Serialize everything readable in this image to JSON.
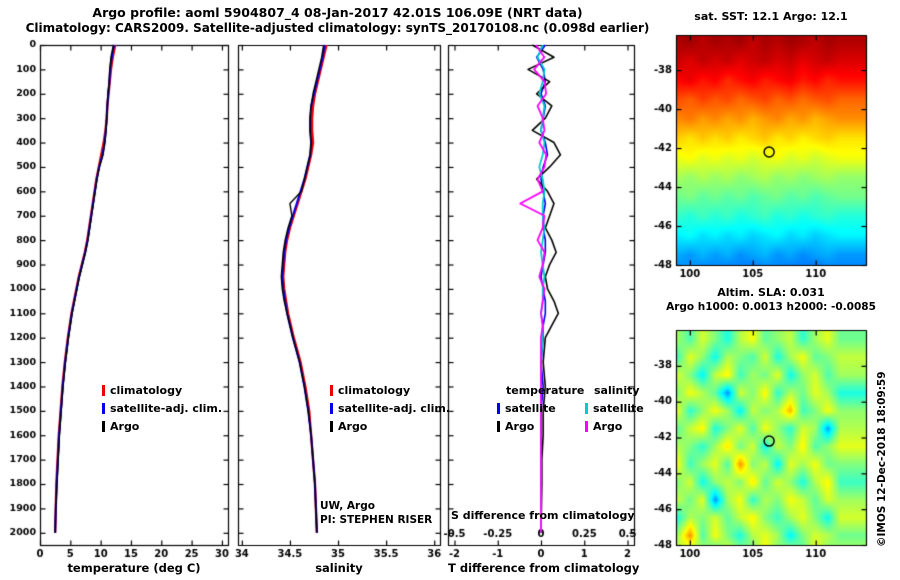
{
  "header": {
    "title_line1": "Argo profile: aoml 5904807_4 08-Jan-2017 42.01S 106.09E (NRT data)",
    "title_line2": "Climatology: CARS2009. Satellite-adjusted climatology: synTS_20170108.nc (0.098d earlier)"
  },
  "watermark": "©IMOS 12-Dec-2018 18:09:59",
  "chart_data": [
    {
      "id": "temperature_profile",
      "type": "line",
      "xlabel": "temperature (deg C)",
      "xlim": [
        0,
        31
      ],
      "xticks": [
        0,
        5,
        10,
        15,
        20,
        25,
        30
      ],
      "ylim": [
        0,
        2050
      ],
      "yticks": [
        0,
        100,
        200,
        300,
        400,
        500,
        600,
        700,
        800,
        900,
        1000,
        1100,
        1200,
        1300,
        1400,
        1500,
        1600,
        1700,
        1800,
        1900,
        2000
      ],
      "depths": [
        0,
        50,
        100,
        150,
        200,
        250,
        300,
        350,
        400,
        450,
        500,
        550,
        600,
        650,
        700,
        750,
        800,
        850,
        900,
        950,
        1000,
        1050,
        1100,
        1150,
        1200,
        1300,
        1400,
        1500,
        1600,
        1700,
        1800,
        1900,
        2000
      ],
      "series": [
        {
          "name": "climatology",
          "color": "#ee0000",
          "values": [
            12.4,
            12.0,
            11.7,
            11.5,
            11.3,
            11.1,
            11.0,
            10.8,
            10.5,
            10.1,
            9.7,
            9.3,
            9.0,
            8.7,
            8.4,
            8.1,
            7.8,
            7.4,
            6.9,
            6.4,
            6.0,
            5.6,
            5.2,
            4.9,
            4.6,
            4.1,
            3.7,
            3.4,
            3.1,
            2.9,
            2.7,
            2.6,
            2.5
          ]
        },
        {
          "name": "satellite-adj. clim.",
          "color": "#0000ee",
          "values": [
            12.2,
            11.85,
            11.55,
            11.45,
            11.25,
            11.1,
            11.0,
            10.85,
            10.65,
            10.3,
            9.75,
            9.35,
            9.05,
            8.75,
            8.45,
            8.15,
            7.85,
            7.45,
            6.95,
            6.45,
            6.05,
            5.65,
            5.25,
            4.95,
            4.65,
            4.15,
            3.75,
            3.45,
            3.15,
            2.95,
            2.75,
            2.6,
            2.5
          ]
        },
        {
          "name": "Argo",
          "color": "#000000",
          "values": [
            12.1,
            11.7,
            11.5,
            11.4,
            11.2,
            11.1,
            11.0,
            10.9,
            10.7,
            10.4,
            9.8,
            9.4,
            9.1,
            8.8,
            8.5,
            8.2,
            7.9,
            7.5,
            7.0,
            6.5,
            6.1,
            5.7,
            5.3,
            5.0,
            4.7,
            4.2,
            3.8,
            3.5,
            3.2,
            3.0,
            2.8,
            2.6,
            2.5
          ]
        }
      ]
    },
    {
      "id": "salinity_profile",
      "type": "line",
      "xlabel": "salinity",
      "xlim": [
        33.96,
        36.06
      ],
      "xticks": [
        34,
        34.5,
        35,
        35.5,
        36
      ],
      "ylim": [
        0,
        2050
      ],
      "yticks": [
        0,
        100,
        200,
        300,
        400,
        500,
        600,
        700,
        800,
        900,
        1000,
        1100,
        1200,
        1300,
        1400,
        1500,
        1600,
        1700,
        1800,
        1900,
        2000
      ],
      "depths": [
        0,
        50,
        100,
        150,
        200,
        250,
        300,
        350,
        400,
        450,
        500,
        550,
        600,
        650,
        700,
        750,
        800,
        850,
        900,
        950,
        1000,
        1050,
        1100,
        1150,
        1200,
        1300,
        1400,
        1500,
        1600,
        1700,
        1800,
        1900,
        2000
      ],
      "annotations": [
        "UW, Argo",
        "PI: STEPHEN RISER"
      ],
      "series": [
        {
          "name": "climatology",
          "color": "#ee0000",
          "values": [
            34.88,
            34.85,
            34.82,
            34.79,
            34.76,
            34.74,
            34.73,
            34.73,
            34.74,
            34.72,
            34.69,
            34.66,
            34.62,
            34.58,
            34.54,
            34.5,
            34.47,
            34.45,
            34.44,
            34.43,
            34.44,
            34.46,
            34.48,
            34.51,
            34.54,
            34.61,
            34.66,
            34.7,
            34.72,
            34.74,
            34.76,
            34.77,
            34.78
          ]
        },
        {
          "name": "satellite-adj. clim.",
          "color": "#0000ee",
          "values": [
            34.86,
            34.84,
            34.81,
            34.78,
            34.75,
            34.72,
            34.71,
            34.71,
            34.72,
            34.71,
            34.68,
            34.65,
            34.61,
            34.57,
            34.53,
            34.49,
            34.46,
            34.44,
            34.43,
            34.42,
            34.43,
            34.45,
            34.47,
            34.5,
            34.53,
            34.6,
            34.65,
            34.69,
            34.72,
            34.74,
            34.76,
            34.77,
            34.78
          ]
        },
        {
          "name": "Argo",
          "color": "#000000",
          "values": [
            34.85,
            34.83,
            34.8,
            34.77,
            34.74,
            34.72,
            34.71,
            34.71,
            34.72,
            34.71,
            34.68,
            34.65,
            34.62,
            34.5,
            34.52,
            34.48,
            34.45,
            34.43,
            34.42,
            34.41,
            34.42,
            34.44,
            34.47,
            34.5,
            34.53,
            34.6,
            34.65,
            34.69,
            34.72,
            34.74,
            34.76,
            34.77,
            34.78
          ]
        }
      ]
    },
    {
      "id": "difference_profile",
      "type": "line",
      "xlabel": "T difference from climatology",
      "slabel": "S difference from climatology",
      "xlim": [
        -2.15,
        2.15
      ],
      "xticks": [
        -2,
        -1,
        0,
        1,
        2
      ],
      "slim": [
        -0.5375,
        0.5375
      ],
      "sticks": [
        -0.5,
        -0.25,
        0,
        0.25,
        0.5
      ],
      "ylim": [
        0,
        2050
      ],
      "yticks": [
        0,
        100,
        200,
        300,
        400,
        500,
        600,
        700,
        800,
        900,
        1000,
        1100,
        1200,
        1300,
        1400,
        1500,
        1600,
        1700,
        1800,
        1900,
        2000
      ],
      "depths": [
        0,
        50,
        100,
        150,
        200,
        250,
        300,
        350,
        400,
        450,
        500,
        550,
        600,
        650,
        700,
        750,
        800,
        850,
        900,
        950,
        1000,
        1050,
        1100,
        1150,
        1200,
        1300,
        1400,
        1500,
        1600,
        1700,
        1800,
        1900,
        2000
      ],
      "series": [
        {
          "name": "satellite",
          "group": "temperature",
          "axis": "T",
          "color": "#0000ee",
          "values": [
            0.1,
            -0.1,
            0.05,
            0.1,
            0,
            0.1,
            0.05,
            0,
            0.1,
            0.15,
            0.05,
            0,
            0.05,
            0.1,
            0.05,
            0.05,
            0.1,
            0.1,
            0.05,
            0,
            0.05,
            0.1,
            0.1,
            0.05,
            0.05,
            0,
            0.05,
            0,
            0,
            0,
            0,
            0,
            0
          ]
        },
        {
          "name": "Argo",
          "group": "temperature",
          "axis": "T",
          "color": "#000000",
          "values": [
            -0.2,
            0.3,
            -0.3,
            0.2,
            -0.1,
            0.25,
            0.1,
            -0.2,
            0.3,
            0.45,
            0.2,
            -0.1,
            0.15,
            0.3,
            0.2,
            0.1,
            0.25,
            0.35,
            0.2,
            0.1,
            0.15,
            0.3,
            0.4,
            0.25,
            0.1,
            0.05,
            0.1,
            0.05,
            0.05,
            0.02,
            0.02,
            0.01,
            0
          ]
        },
        {
          "name": "satellite",
          "group": "salinity",
          "axis": "S",
          "color": "#00cccc",
          "values": [
            0.01,
            -0.02,
            0.02,
            0.01,
            -0.01,
            0.02,
            0.01,
            0,
            0.02,
            0.01,
            -0.01,
            0.01,
            0.02,
            0.01,
            0.01,
            0.02,
            0.01,
            0,
            0.01,
            0.02,
            0.01,
            0.01,
            0,
            0.01,
            0.01,
            0,
            0,
            0,
            0,
            0,
            0,
            0,
            0
          ]
        },
        {
          "name": "Argo",
          "group": "salinity",
          "axis": "S",
          "color": "#ff00ff",
          "values": [
            -0.03,
            0.02,
            -0.04,
            0.02,
            0.03,
            -0.02,
            0.01,
            0.02,
            -0.01,
            0.03,
            0.02,
            -0.02,
            0.01,
            -0.12,
            0.02,
            0.01,
            -0.02,
            0.02,
            0.01,
            -0.01,
            0.02,
            0.01,
            0,
            0.01,
            0,
            0,
            0,
            0,
            0,
            0,
            0,
            0,
            0
          ]
        }
      ],
      "legend_groups": [
        {
          "title": "temperature",
          "entries": [
            {
              "label": "satellite",
              "color": "#0000ee"
            },
            {
              "label": "Argo",
              "color": "#000000"
            }
          ]
        },
        {
          "title": "salinity",
          "entries": [
            {
              "label": "satellite",
              "color": "#00cccc"
            },
            {
              "label": "Argo",
              "color": "#ff00ff"
            }
          ]
        }
      ]
    },
    {
      "id": "sst_map",
      "type": "heatmap",
      "title": "sat. SST: 12.1  Argo: 12.1",
      "xticks": [
        100,
        105,
        110
      ],
      "yticks": [
        -38,
        -40,
        -42,
        -44,
        -46,
        -48
      ],
      "lon_range": [
        98.9,
        114.0
      ],
      "lat_range": [
        -36.2,
        -48.0
      ],
      "vmin": -1.7,
      "vmax": 20.6,
      "marker": {
        "lon": 106.3,
        "lat": -42.2
      },
      "lons": [
        99,
        100,
        101,
        102,
        103,
        104,
        105,
        106,
        107,
        108,
        109,
        110,
        111,
        112
      ],
      "lats": [
        -36.5,
        -37.5,
        -38.5,
        -39.5,
        -40.5,
        -41.5,
        -42.5,
        -43.5,
        -44.5,
        -45.5,
        -46.5,
        -47.5,
        -48.5
      ],
      "values": [
        [
          19.6,
          19.9,
          19.3,
          19.8,
          19.5,
          19.9,
          19.1,
          19.7,
          19.4,
          19.9,
          19.6,
          19.2,
          19.8,
          19.5
        ],
        [
          19.0,
          18.5,
          19.2,
          18.7,
          19.1,
          18.4,
          18.9,
          19.2,
          18.6,
          19.0,
          18.3,
          18.8,
          19.1,
          18.6
        ],
        [
          17.8,
          18.2,
          17.4,
          17.9,
          16.9,
          17.6,
          18.0,
          17.2,
          17.7,
          18.1,
          17.3,
          17.8,
          17.0,
          17.5
        ],
        [
          16.2,
          15.7,
          16.5,
          15.9,
          16.3,
          15.5,
          16.0,
          16.4,
          15.6,
          16.1,
          15.4,
          15.9,
          16.2,
          15.6
        ],
        [
          14.8,
          15.2,
          14.4,
          14.9,
          14.2,
          14.7,
          13.9,
          14.5,
          14.9,
          14.1,
          14.6,
          13.8,
          14.3,
          14.7
        ],
        [
          13.3,
          12.8,
          13.5,
          12.9,
          13.4,
          12.6,
          13.1,
          13.5,
          12.7,
          13.2,
          12.5,
          13.0,
          13.3,
          12.8
        ],
        [
          11.9,
          12.3,
          11.5,
          12.0,
          11.4,
          11.9,
          11.2,
          11.7,
          12.1,
          11.3,
          11.8,
          11.1,
          11.6,
          12.0
        ],
        [
          10.4,
          9.9,
          10.6,
          10.0,
          10.5,
          9.7,
          10.2,
          10.6,
          9.8,
          10.3,
          9.6,
          10.1,
          10.4,
          9.9
        ],
        [
          9.1,
          9.5,
          8.7,
          9.2,
          8.6,
          9.1,
          8.4,
          8.9,
          9.3,
          8.5,
          9.0,
          8.3,
          8.8,
          9.2
        ],
        [
          7.9,
          7.4,
          8.1,
          7.5,
          8.0,
          7.2,
          7.7,
          8.1,
          7.3,
          7.8,
          7.1,
          7.6,
          7.9,
          7.4
        ],
        [
          6.4,
          6.8,
          6.0,
          6.5,
          5.9,
          6.4,
          5.7,
          6.2,
          6.6,
          5.8,
          6.3,
          5.6,
          6.1,
          6.5
        ],
        [
          4.9,
          4.4,
          5.1,
          4.5,
          5.0,
          4.2,
          4.7,
          5.1,
          4.3,
          4.8,
          4.1,
          4.6,
          4.9,
          4.4
        ],
        [
          3.8,
          4.2,
          3.4,
          3.9,
          3.3,
          3.8,
          3.1,
          3.6,
          4.0,
          3.2,
          3.7,
          3.0,
          3.5,
          3.9
        ]
      ]
    },
    {
      "id": "sla_map",
      "type": "heatmap",
      "title_line1": "Altim. SLA: 0.031",
      "title_line2": "Argo h1000: 0.0013 h2000: -0.0085",
      "xticks": [
        100,
        105,
        110
      ],
      "yticks": [
        -38,
        -40,
        -42,
        -44,
        -46,
        -48
      ],
      "lon_range": [
        98.9,
        114.0
      ],
      "lat_range": [
        -36.0,
        -48.0
      ],
      "vmin": -0.3,
      "vmax": 0.3,
      "marker": {
        "lon": 106.3,
        "lat": -42.2
      },
      "lons": [
        99,
        100,
        101,
        102,
        103,
        104,
        105,
        106,
        107,
        108,
        109,
        110,
        111,
        112
      ],
      "lats": [
        -36.5,
        -37.5,
        -38.5,
        -39.5,
        -40.5,
        -41.5,
        -42.5,
        -43.5,
        -44.5,
        -45.5,
        -46.5,
        -47.5,
        -48.5
      ],
      "values": [
        [
          0.02,
          -0.03,
          0.05,
          0.0,
          -0.06,
          0.03,
          0.07,
          -0.02,
          0.01,
          0.04,
          -0.05,
          0.02,
          0.06,
          -0.01
        ],
        [
          -0.04,
          0.06,
          0.01,
          -0.07,
          0.03,
          0.0,
          -0.03,
          0.05,
          -0.06,
          0.02,
          0.07,
          -0.02,
          0.0,
          0.04
        ],
        [
          0.05,
          0.0,
          -0.08,
          0.04,
          0.08,
          -0.04,
          0.02,
          -0.01,
          0.06,
          -0.07,
          0.01,
          0.05,
          -0.03,
          0.02
        ],
        [
          0.0,
          0.07,
          0.03,
          -0.02,
          -0.14,
          0.05,
          0.0,
          0.08,
          -0.05,
          0.03,
          -0.01,
          0.06,
          0.02,
          -0.06
        ],
        [
          0.06,
          -0.05,
          0.01,
          0.07,
          0.02,
          -0.08,
          0.04,
          0.0,
          0.03,
          0.12,
          -0.04,
          0.0,
          0.07,
          0.01
        ],
        [
          -0.02,
          0.04,
          0.08,
          -0.06,
          0.0,
          0.06,
          -0.03,
          0.07,
          0.01,
          -0.05,
          0.05,
          0.02,
          -0.13,
          0.03
        ],
        [
          0.03,
          0.0,
          -0.05,
          0.02,
          0.09,
          -0.01,
          0.05,
          -0.07,
          0.04,
          0.0,
          0.08,
          -0.03,
          0.01,
          0.06
        ],
        [
          0.07,
          -0.04,
          0.02,
          0.06,
          -0.03,
          0.14,
          0.0,
          0.04,
          -0.08,
          0.06,
          0.02,
          0.07,
          -0.01,
          0.0
        ],
        [
          0.0,
          0.05,
          -0.07,
          0.01,
          0.04,
          0.0,
          0.09,
          -0.02,
          0.05,
          0.01,
          -0.06,
          0.03,
          0.08,
          -0.04
        ],
        [
          0.04,
          -0.01,
          0.06,
          -0.14,
          0.02,
          0.07,
          -0.05,
          0.03,
          0.0,
          0.07,
          0.04,
          -0.02,
          0.05,
          0.02
        ],
        [
          -0.06,
          0.03,
          0.0,
          0.05,
          -0.02,
          0.04,
          0.08,
          0.0,
          -0.04,
          0.02,
          0.06,
          0.0,
          -0.07,
          0.05
        ],
        [
          0.02,
          0.14,
          -0.03,
          0.07,
          0.0,
          -0.06,
          0.03,
          0.06,
          0.02,
          -0.08,
          0.0,
          0.05,
          0.03,
          -0.01
        ],
        [
          0.05,
          0.0,
          0.04,
          -0.05,
          0.06,
          0.02,
          -0.02,
          0.08,
          0.0,
          0.04,
          -0.03,
          0.07,
          0.0,
          0.03
        ]
      ]
    }
  ]
}
